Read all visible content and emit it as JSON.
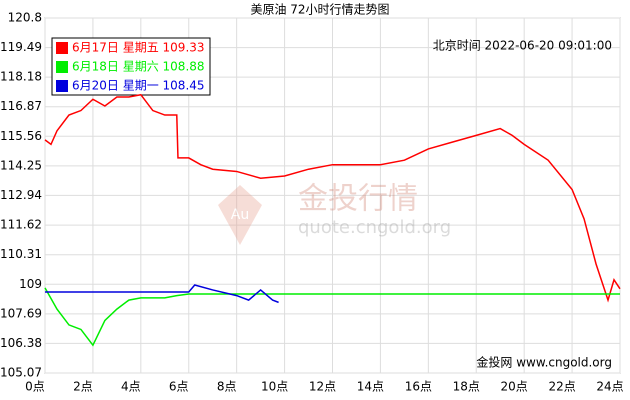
{
  "chart_data": {
    "type": "line",
    "title": "美原油 72小时行情走势图",
    "subtitle": "北京时间 2022-06-20 09:01:00",
    "watermark": {
      "logo": "Au",
      "name": "金投行情",
      "url": "quote.cngold.org"
    },
    "source": "金投网 www.cngold.org",
    "xlim": [
      0,
      24
    ],
    "xticks": [
      {
        "value": 0,
        "label": "0点"
      },
      {
        "value": 2,
        "label": "2点"
      },
      {
        "value": 4,
        "label": "4点"
      },
      {
        "value": 6,
        "label": "6点"
      },
      {
        "value": 8,
        "label": "8点"
      },
      {
        "value": 10,
        "label": "10点"
      },
      {
        "value": 12,
        "label": "12点"
      },
      {
        "value": 14,
        "label": "14点"
      },
      {
        "value": 16,
        "label": "16点"
      },
      {
        "value": 18,
        "label": "18点"
      },
      {
        "value": 20,
        "label": "20点"
      },
      {
        "value": 22,
        "label": "22点"
      },
      {
        "value": 24,
        "label": "24点"
      }
    ],
    "ylim": [
      105.07,
      120.8
    ],
    "yticks": [
      105.07,
      106.38,
      107.69,
      109,
      110.31,
      111.62,
      112.94,
      114.25,
      115.56,
      116.87,
      118.18,
      119.49,
      120.8
    ],
    "grid": true,
    "series": [
      {
        "name": "6月17日 星期五 109.33",
        "color": "#ff0000",
        "x": [
          0,
          0.25,
          0.5,
          1,
          1.5,
          2,
          2.5,
          3,
          3.5,
          4,
          4.5,
          5,
          5.5,
          5.55,
          6,
          6.5,
          7,
          8,
          9,
          10,
          11,
          12,
          13,
          14,
          15,
          16,
          17,
          18,
          19,
          19.5,
          20,
          21,
          22,
          22.5,
          23,
          23.5,
          23.75,
          24
        ],
        "values": [
          115.4,
          115.2,
          115.8,
          116.5,
          116.7,
          117.2,
          116.9,
          117.3,
          117.3,
          117.4,
          116.7,
          116.5,
          116.5,
          114.6,
          114.6,
          114.3,
          114.1,
          114.0,
          113.7,
          113.8,
          114.1,
          114.3,
          114.3,
          114.3,
          114.5,
          115.0,
          115.3,
          115.6,
          115.9,
          115.6,
          115.2,
          114.5,
          113.2,
          111.9,
          109.9,
          108.3,
          109.2,
          108.8
        ]
      },
      {
        "name": "6月18日 星期六 108.88",
        "color": "#00ee00",
        "x": [
          0,
          0.5,
          1,
          1.5,
          2,
          2.5,
          3,
          3.5,
          4,
          5,
          5.5,
          6,
          24
        ],
        "values": [
          108.84,
          107.9,
          107.2,
          107.0,
          106.3,
          107.4,
          107.9,
          108.3,
          108.4,
          108.4,
          108.5,
          108.57,
          108.57
        ]
      },
      {
        "name": "6月20日 星期一 108.45",
        "color": "#0000dd",
        "x": [
          0,
          6,
          6.25,
          7,
          8,
          8.5,
          9,
          9.5,
          9.75
        ],
        "values": [
          108.66,
          108.66,
          108.97,
          108.75,
          108.5,
          108.3,
          108.75,
          108.3,
          108.2
        ]
      }
    ]
  }
}
